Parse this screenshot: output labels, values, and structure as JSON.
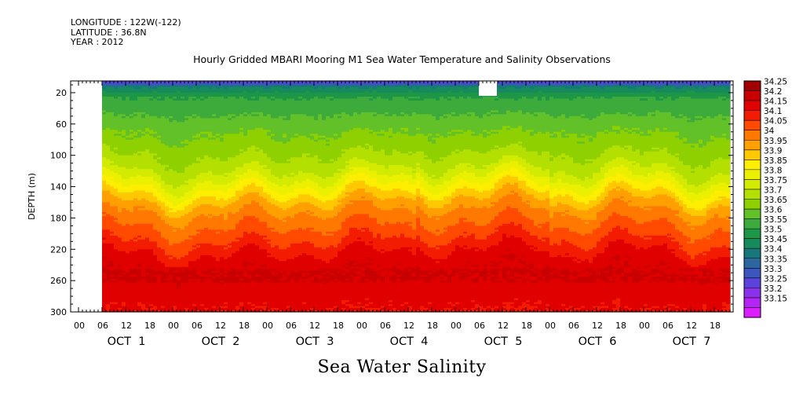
{
  "meta": {
    "longitude": "LONGITUDE : 122W(-122)",
    "latitude": "LATITUDE : 36.8N",
    "year": "YEAR : 2012"
  },
  "title": "Hourly Gridded MBARI Mooring M1 Sea Water Temperature and Salinity Observations",
  "bottom_title": "Sea Water Salinity",
  "chart_data": {
    "type": "heatmap",
    "title": "Hourly Gridded MBARI Mooring M1 Sea Water Temperature and Salinity Observations",
    "variable": "Sea Water Salinity",
    "ylabel": "DEPTH (m)",
    "y_ticks": [
      20,
      60,
      100,
      140,
      180,
      220,
      260,
      300
    ],
    "ylim": [
      300,
      5
    ],
    "x_hour_ticks": [
      "00",
      "06",
      "12",
      "18",
      "00",
      "06",
      "12",
      "18",
      "00",
      "06",
      "12",
      "18",
      "00",
      "06",
      "12",
      "18",
      "00",
      "06",
      "12",
      "18",
      "00",
      "06",
      "12",
      "18",
      "00",
      "06",
      "12",
      "18"
    ],
    "x_days": [
      "OCT  1",
      "OCT  2",
      "OCT  3",
      "OCT  4",
      "OCT  5",
      "OCT  6",
      "OCT  7"
    ],
    "data_start_hour": 5,
    "data_end_hour": 166,
    "missing_gap_hours": [
      0,
      5
    ],
    "colorbar_levels": [
      "34.25",
      "34.2",
      "34.15",
      "34.1",
      "34.05",
      "34",
      "33.95",
      "33.9",
      "33.85",
      "33.8",
      "33.75",
      "33.7",
      "33.65",
      "33.6",
      "33.55",
      "33.5",
      "33.45",
      "33.4",
      "33.35",
      "33.3",
      "33.25",
      "33.2",
      "33.15"
    ],
    "colorbar_colors": [
      "#a00000",
      "#c80000",
      "#e10000",
      "#f31c00",
      "#ff4a00",
      "#ff7800",
      "#ffa000",
      "#ffc800",
      "#ffee00",
      "#eaf000",
      "#d2eb00",
      "#b3e000",
      "#8ed000",
      "#62c028",
      "#3cab3c",
      "#1e9648",
      "#168a5a",
      "#16787a",
      "#2b669e",
      "#3c56c0",
      "#5b43dc",
      "#8a32ea",
      "#b325f5",
      "#dc1eff"
    ],
    "profile": [
      [
        5,
        33.28
      ],
      [
        12,
        33.45
      ],
      [
        25,
        33.55
      ],
      [
        40,
        33.58
      ],
      [
        60,
        33.63
      ],
      [
        80,
        33.66
      ],
      [
        100,
        33.7
      ],
      [
        120,
        33.75
      ],
      [
        135,
        33.82
      ],
      [
        150,
        33.9
      ],
      [
        165,
        33.98
      ],
      [
        180,
        34.02
      ],
      [
        195,
        34.06
      ],
      [
        210,
        34.1
      ],
      [
        225,
        34.15
      ],
      [
        240,
        34.19
      ],
      [
        255,
        34.2
      ],
      [
        270,
        34.18
      ],
      [
        285,
        34.16
      ],
      [
        300,
        34.15
      ]
    ]
  }
}
